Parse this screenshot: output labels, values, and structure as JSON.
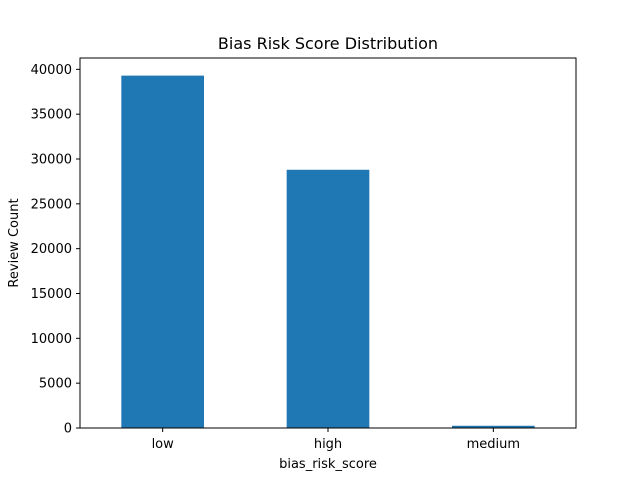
{
  "chart_data": {
    "type": "bar",
    "title": "Bias Risk Score Distribution",
    "xlabel": "bias_risk_score",
    "ylabel": "Review Count",
    "categories": [
      "low",
      "high",
      "medium"
    ],
    "values": [
      39300,
      28800,
      250
    ],
    "ylim": [
      0,
      41265
    ],
    "yticks": [
      0,
      5000,
      10000,
      15000,
      20000,
      25000,
      30000,
      35000,
      40000
    ],
    "grid": false,
    "legend": "none",
    "bar_color": "#1f77b4"
  }
}
